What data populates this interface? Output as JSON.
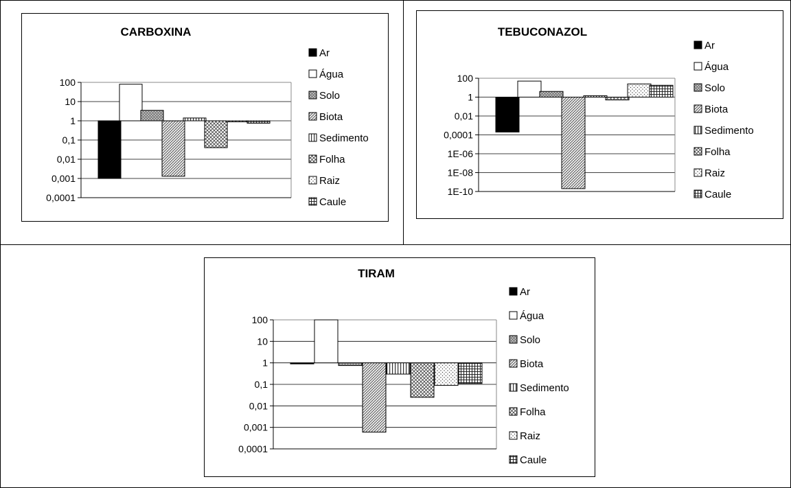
{
  "chart_data": [
    {
      "type": "bar",
      "title": "CARBOXINA",
      "yscale": "log",
      "baseline": 1,
      "ylim": [
        0.0001,
        100
      ],
      "yticks": [
        "100",
        "10",
        "1",
        "0,1",
        "0,01",
        "0,001",
        "0,0001"
      ],
      "grid": true,
      "legend_position": "right",
      "series": [
        {
          "name": "Ar",
          "values": [
            0.001
          ]
        },
        {
          "name": "Água",
          "values": [
            80
          ]
        },
        {
          "name": "Solo",
          "values": [
            3.5
          ]
        },
        {
          "name": "Biota",
          "values": [
            0.0013
          ]
        },
        {
          "name": "Sedimento",
          "values": [
            1.4
          ]
        },
        {
          "name": "Folha",
          "values": [
            0.04
          ]
        },
        {
          "name": "Raiz",
          "values": [
            0.9
          ]
        },
        {
          "name": "Caule",
          "values": [
            0.75
          ]
        }
      ]
    },
    {
      "type": "bar",
      "title": "TEBUCONAZOL",
      "yscale": "log",
      "baseline": 1,
      "ylim": [
        1e-10,
        100
      ],
      "yticks": [
        "100",
        "1",
        "0,01",
        "0,0001",
        "1E-06",
        "1E-08",
        "1E-10"
      ],
      "grid": true,
      "legend_position": "right",
      "series": [
        {
          "name": "Ar",
          "values": [
            0.0002
          ]
        },
        {
          "name": "Água",
          "values": [
            50
          ]
        },
        {
          "name": "Solo",
          "values": [
            4
          ]
        },
        {
          "name": "Biota",
          "values": [
            2e-10
          ]
        },
        {
          "name": "Sedimento",
          "values": [
            1.4
          ]
        },
        {
          "name": "Folha",
          "values": [
            0.5
          ]
        },
        {
          "name": "Raiz",
          "values": [
            25
          ]
        },
        {
          "name": "Caule",
          "values": [
            18
          ]
        }
      ]
    },
    {
      "type": "bar",
      "title": "TIRAM",
      "yscale": "log",
      "baseline": 1,
      "ylim": [
        0.0001,
        100
      ],
      "yticks": [
        "100",
        "10",
        "1",
        "0,1",
        "0,01",
        "0,001",
        "0,0001"
      ],
      "grid": true,
      "legend_position": "right",
      "series": [
        {
          "name": "Ar",
          "values": [
            1
          ]
        },
        {
          "name": "Água",
          "values": [
            100
          ]
        },
        {
          "name": "Solo",
          "values": [
            0.75
          ]
        },
        {
          "name": "Biota",
          "values": [
            0.0006
          ]
        },
        {
          "name": "Sedimento",
          "values": [
            0.3
          ]
        },
        {
          "name": "Folha",
          "values": [
            0.025
          ]
        },
        {
          "name": "Raiz",
          "values": [
            0.09
          ]
        },
        {
          "name": "Caule",
          "values": [
            0.11
          ]
        }
      ]
    }
  ]
}
